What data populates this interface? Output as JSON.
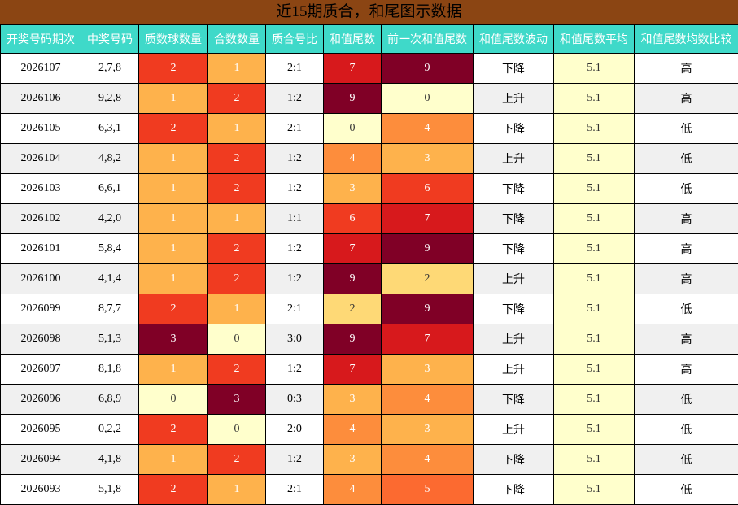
{
  "title": "近15期质合，和尾图示数据",
  "headers": [
    "开奖号码期次",
    "中奖号码",
    "质数球数量",
    "合数数量",
    "质合号比",
    "和值尾数",
    "前一次和值尾数",
    "和值尾数波动",
    "和值尾数平均",
    "和值尾数均数比较"
  ],
  "rows": [
    {
      "issue": "2026107",
      "numbers": "2,7,8",
      "prime": "2",
      "composite": "1",
      "ratio": "2:1",
      "tail": "7",
      "prev_tail": "9",
      "trend": "下降",
      "avg": "5.1",
      "compare": "高"
    },
    {
      "issue": "2026106",
      "numbers": "9,2,8",
      "prime": "1",
      "composite": "2",
      "ratio": "1:2",
      "tail": "9",
      "prev_tail": "0",
      "trend": "上升",
      "avg": "5.1",
      "compare": "高"
    },
    {
      "issue": "2026105",
      "numbers": "6,3,1",
      "prime": "2",
      "composite": "1",
      "ratio": "2:1",
      "tail": "0",
      "prev_tail": "4",
      "trend": "下降",
      "avg": "5.1",
      "compare": "低"
    },
    {
      "issue": "2026104",
      "numbers": "4,8,2",
      "prime": "1",
      "composite": "2",
      "ratio": "1:2",
      "tail": "4",
      "prev_tail": "3",
      "trend": "上升",
      "avg": "5.1",
      "compare": "低"
    },
    {
      "issue": "2026103",
      "numbers": "6,6,1",
      "prime": "1",
      "composite": "2",
      "ratio": "1:2",
      "tail": "3",
      "prev_tail": "6",
      "trend": "下降",
      "avg": "5.1",
      "compare": "低"
    },
    {
      "issue": "2026102",
      "numbers": "4,2,0",
      "prime": "1",
      "composite": "1",
      "ratio": "1:1",
      "tail": "6",
      "prev_tail": "7",
      "trend": "下降",
      "avg": "5.1",
      "compare": "高"
    },
    {
      "issue": "2026101",
      "numbers": "5,8,4",
      "prime": "1",
      "composite": "2",
      "ratio": "1:2",
      "tail": "7",
      "prev_tail": "9",
      "trend": "下降",
      "avg": "5.1",
      "compare": "高"
    },
    {
      "issue": "2026100",
      "numbers": "4,1,4",
      "prime": "1",
      "composite": "2",
      "ratio": "1:2",
      "tail": "9",
      "prev_tail": "2",
      "trend": "上升",
      "avg": "5.1",
      "compare": "高"
    },
    {
      "issue": "2026099",
      "numbers": "8,7,7",
      "prime": "2",
      "composite": "1",
      "ratio": "2:1",
      "tail": "2",
      "prev_tail": "9",
      "trend": "下降",
      "avg": "5.1",
      "compare": "低"
    },
    {
      "issue": "2026098",
      "numbers": "5,1,3",
      "prime": "3",
      "composite": "0",
      "ratio": "3:0",
      "tail": "9",
      "prev_tail": "7",
      "trend": "上升",
      "avg": "5.1",
      "compare": "高"
    },
    {
      "issue": "2026097",
      "numbers": "8,1,8",
      "prime": "1",
      "composite": "2",
      "ratio": "1:2",
      "tail": "7",
      "prev_tail": "3",
      "trend": "上升",
      "avg": "5.1",
      "compare": "高"
    },
    {
      "issue": "2026096",
      "numbers": "6,8,9",
      "prime": "0",
      "composite": "3",
      "ratio": "0:3",
      "tail": "3",
      "prev_tail": "4",
      "trend": "下降",
      "avg": "5.1",
      "compare": "低"
    },
    {
      "issue": "2026095",
      "numbers": "0,2,2",
      "prime": "2",
      "composite": "0",
      "ratio": "2:0",
      "tail": "4",
      "prev_tail": "3",
      "trend": "上升",
      "avg": "5.1",
      "compare": "低"
    },
    {
      "issue": "2026094",
      "numbers": "4,1,8",
      "prime": "1",
      "composite": "2",
      "ratio": "1:2",
      "tail": "3",
      "prev_tail": "4",
      "trend": "下降",
      "avg": "5.1",
      "compare": "低"
    },
    {
      "issue": "2026093",
      "numbers": "5,1,8",
      "prime": "2",
      "composite": "1",
      "ratio": "2:1",
      "tail": "4",
      "prev_tail": "5",
      "trend": "下降",
      "avg": "5.1",
      "compare": "低"
    }
  ],
  "colors": {
    "title_bg": "#8b4513",
    "header_bg": "#3fd9c9",
    "heat_count": {
      "0": "#ffffcc",
      "1": "#feb24c",
      "2": "#f03b20",
      "3": "#800026"
    },
    "heat_tail": {
      "0": "#ffffcc",
      "2": "#fed976",
      "3": "#feb24c",
      "4": "#fd8d3c",
      "5": "#fc6a30",
      "6": "#f03b20",
      "7": "#d7191c",
      "9": "#800026"
    },
    "avg_bg": "#ffffcc",
    "alt_row_bg": "#f0f0f0"
  }
}
